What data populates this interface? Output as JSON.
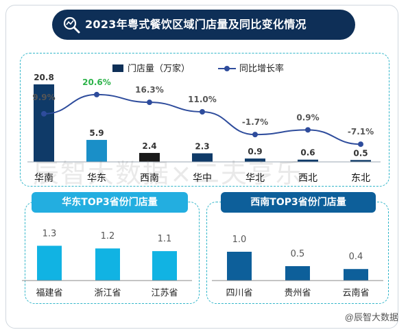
{
  "title": "2023年粤式餐饮区域门店量及同比变化情况",
  "icon_name": "magnifier-chart-icon",
  "watermark": "辰智大数据×二夫亨乐",
  "credit": "@辰智大数据",
  "colors": {
    "dark_navy": "#0e2f57",
    "bar_navy": "#0f3a68",
    "bar_blue": "#1a8fc8",
    "bar_black": "#1a1a1a",
    "line": "#2e4c9c",
    "highlight_green": "#2db34a",
    "teal": "#2fb5c9",
    "sub_bar_left": "#11b3e3",
    "sub_bar_right": "#0d5f9a"
  },
  "chart_data": [
    {
      "type": "bar",
      "categories": [
        "华南",
        "华东",
        "西南",
        "华中",
        "华北",
        "西北",
        "东北"
      ],
      "series": [
        {
          "name": "门店量（万家）",
          "type": "bar",
          "values": [
            20.8,
            5.9,
            2.4,
            2.3,
            0.9,
            0.6,
            0.5
          ]
        },
        {
          "name": "同比增长率",
          "type": "line",
          "values": [
            9.9,
            20.6,
            16.3,
            11.0,
            -1.7,
            0.9,
            -7.1
          ],
          "labels": [
            "9.9%",
            "20.6%",
            "16.3%",
            "11.0%",
            "-1.7%",
            "0.9%",
            "-7.1%"
          ]
        }
      ],
      "bar_labels": [
        "20.8",
        "5.9",
        "2.4",
        "2.3",
        "0.9",
        "0.6",
        "0.5"
      ],
      "legend_position": "top-center"
    },
    {
      "type": "bar",
      "title": "华东TOP3省份门店量",
      "categories": [
        "福建省",
        "浙江省",
        "江苏省"
      ],
      "values": [
        1.3,
        1.2,
        1.1
      ],
      "bar_labels": [
        "1.3",
        "1.2",
        "1.1"
      ]
    },
    {
      "type": "bar",
      "title": "西南TOP3省份门店量",
      "categories": [
        "四川省",
        "贵州省",
        "云南省"
      ],
      "values": [
        1.0,
        0.5,
        0.4
      ],
      "bar_labels": [
        "1.0",
        "0.5",
        "0.4"
      ]
    }
  ]
}
